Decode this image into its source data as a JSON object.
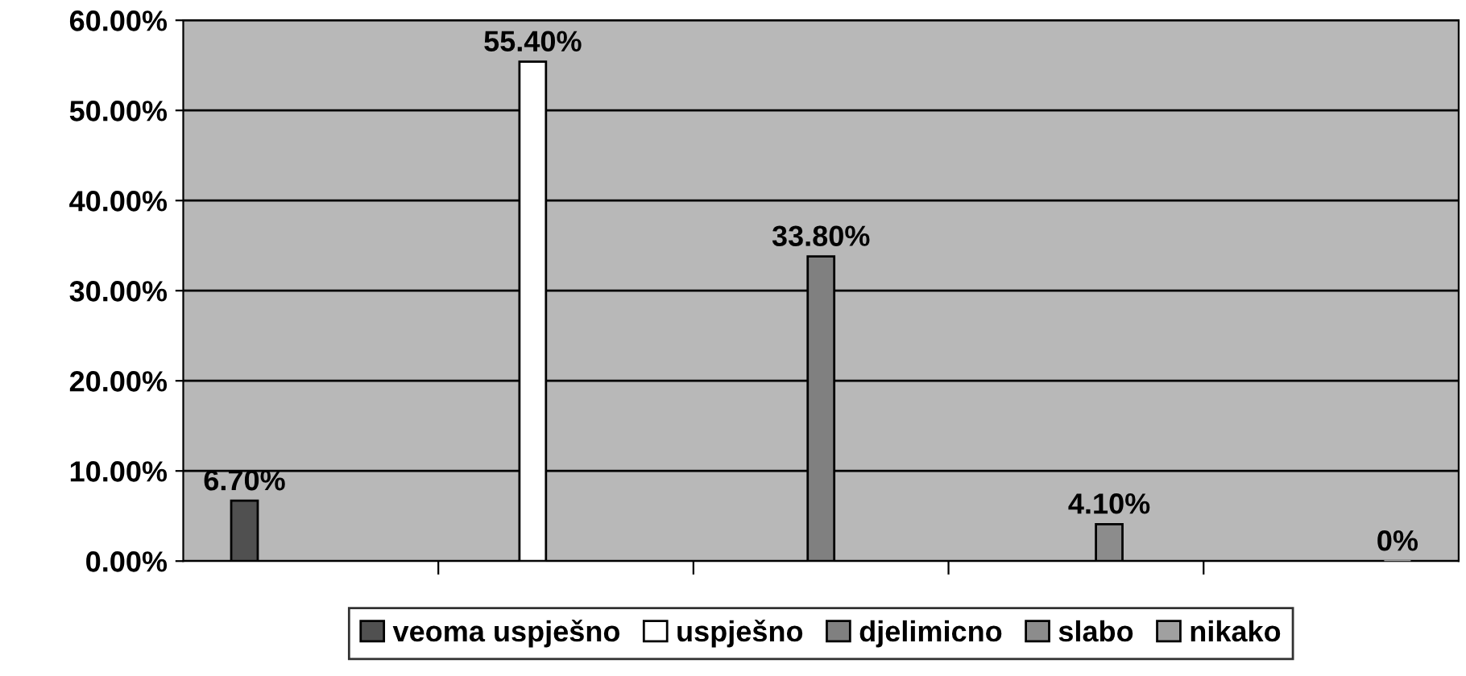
{
  "chart_data": {
    "type": "bar",
    "categories": [
      null,
      null,
      null,
      null,
      null
    ],
    "series": [
      {
        "name": "veoma uspješno",
        "color": "#505050",
        "values": [
          6.7,
          null,
          null,
          null,
          null
        ],
        "value_labels": [
          "6.70%",
          null,
          null,
          null,
          null
        ]
      },
      {
        "name": "uspješno",
        "color": "#ffffff",
        "values": [
          null,
          55.4,
          null,
          null,
          null
        ],
        "value_labels": [
          null,
          "55.40%",
          null,
          null,
          null
        ]
      },
      {
        "name": "djelimicno",
        "color": "#808080",
        "values": [
          null,
          null,
          33.8,
          null,
          null
        ],
        "value_labels": [
          null,
          null,
          "33.80%",
          null,
          null
        ]
      },
      {
        "name": "slabo",
        "color": "#8c8c8c",
        "values": [
          null,
          null,
          null,
          4.1,
          null
        ],
        "value_labels": [
          null,
          null,
          null,
          "4.10%",
          null
        ]
      },
      {
        "name": "nikako",
        "color": "#a0a0a0",
        "values": [
          null,
          null,
          null,
          null,
          0
        ],
        "value_labels": [
          null,
          null,
          null,
          null,
          "0%"
        ]
      }
    ],
    "ylim": [
      0,
      60
    ],
    "yticks": [
      {
        "value": 0,
        "label": "0.00%"
      },
      {
        "value": 10,
        "label": "10.00%"
      },
      {
        "value": 20,
        "label": "20.00%"
      },
      {
        "value": 30,
        "label": "30.00%"
      },
      {
        "value": 40,
        "label": "40.00%"
      },
      {
        "value": 50,
        "label": "50.00%"
      },
      {
        "value": 60,
        "label": "60.00%"
      }
    ],
    "grid": "y",
    "legend": "bottom",
    "tick_labels": "y"
  }
}
